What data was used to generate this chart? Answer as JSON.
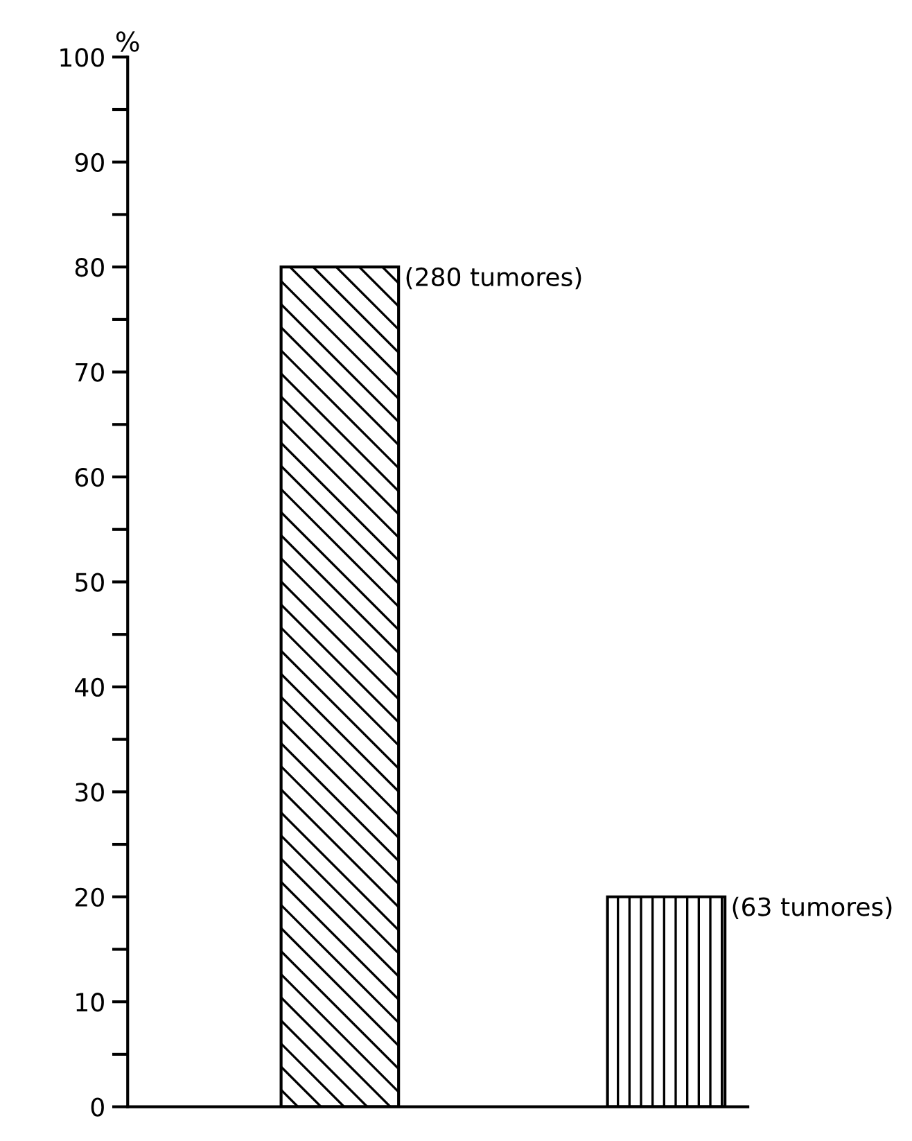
{
  "chart_data": {
    "type": "bar",
    "ylabel": "%",
    "categories": [
      null,
      null
    ],
    "values": [
      80,
      20
    ],
    "color": "#000000",
    "annotations": [
      "(280 tumores)",
      "(63 tumores)"
    ],
    "ylim": [
      0,
      100
    ],
    "yticks": [
      0,
      {
        "value": 5,
        "label": null
      },
      10,
      {
        "value": 15,
        "label": null
      },
      20,
      {
        "value": 25,
        "label": null
      },
      30,
      {
        "value": 35,
        "label": null
      },
      40,
      {
        "value": 45,
        "label": null
      },
      50,
      {
        "value": 55,
        "label": null
      },
      60,
      {
        "value": 65,
        "label": null
      },
      70,
      {
        "value": 75,
        "label": null
      },
      80,
      {
        "value": 85,
        "label": null
      },
      90,
      {
        "value": 95,
        "label": null
      },
      100
    ],
    "grid": false,
    "legend": false
  }
}
